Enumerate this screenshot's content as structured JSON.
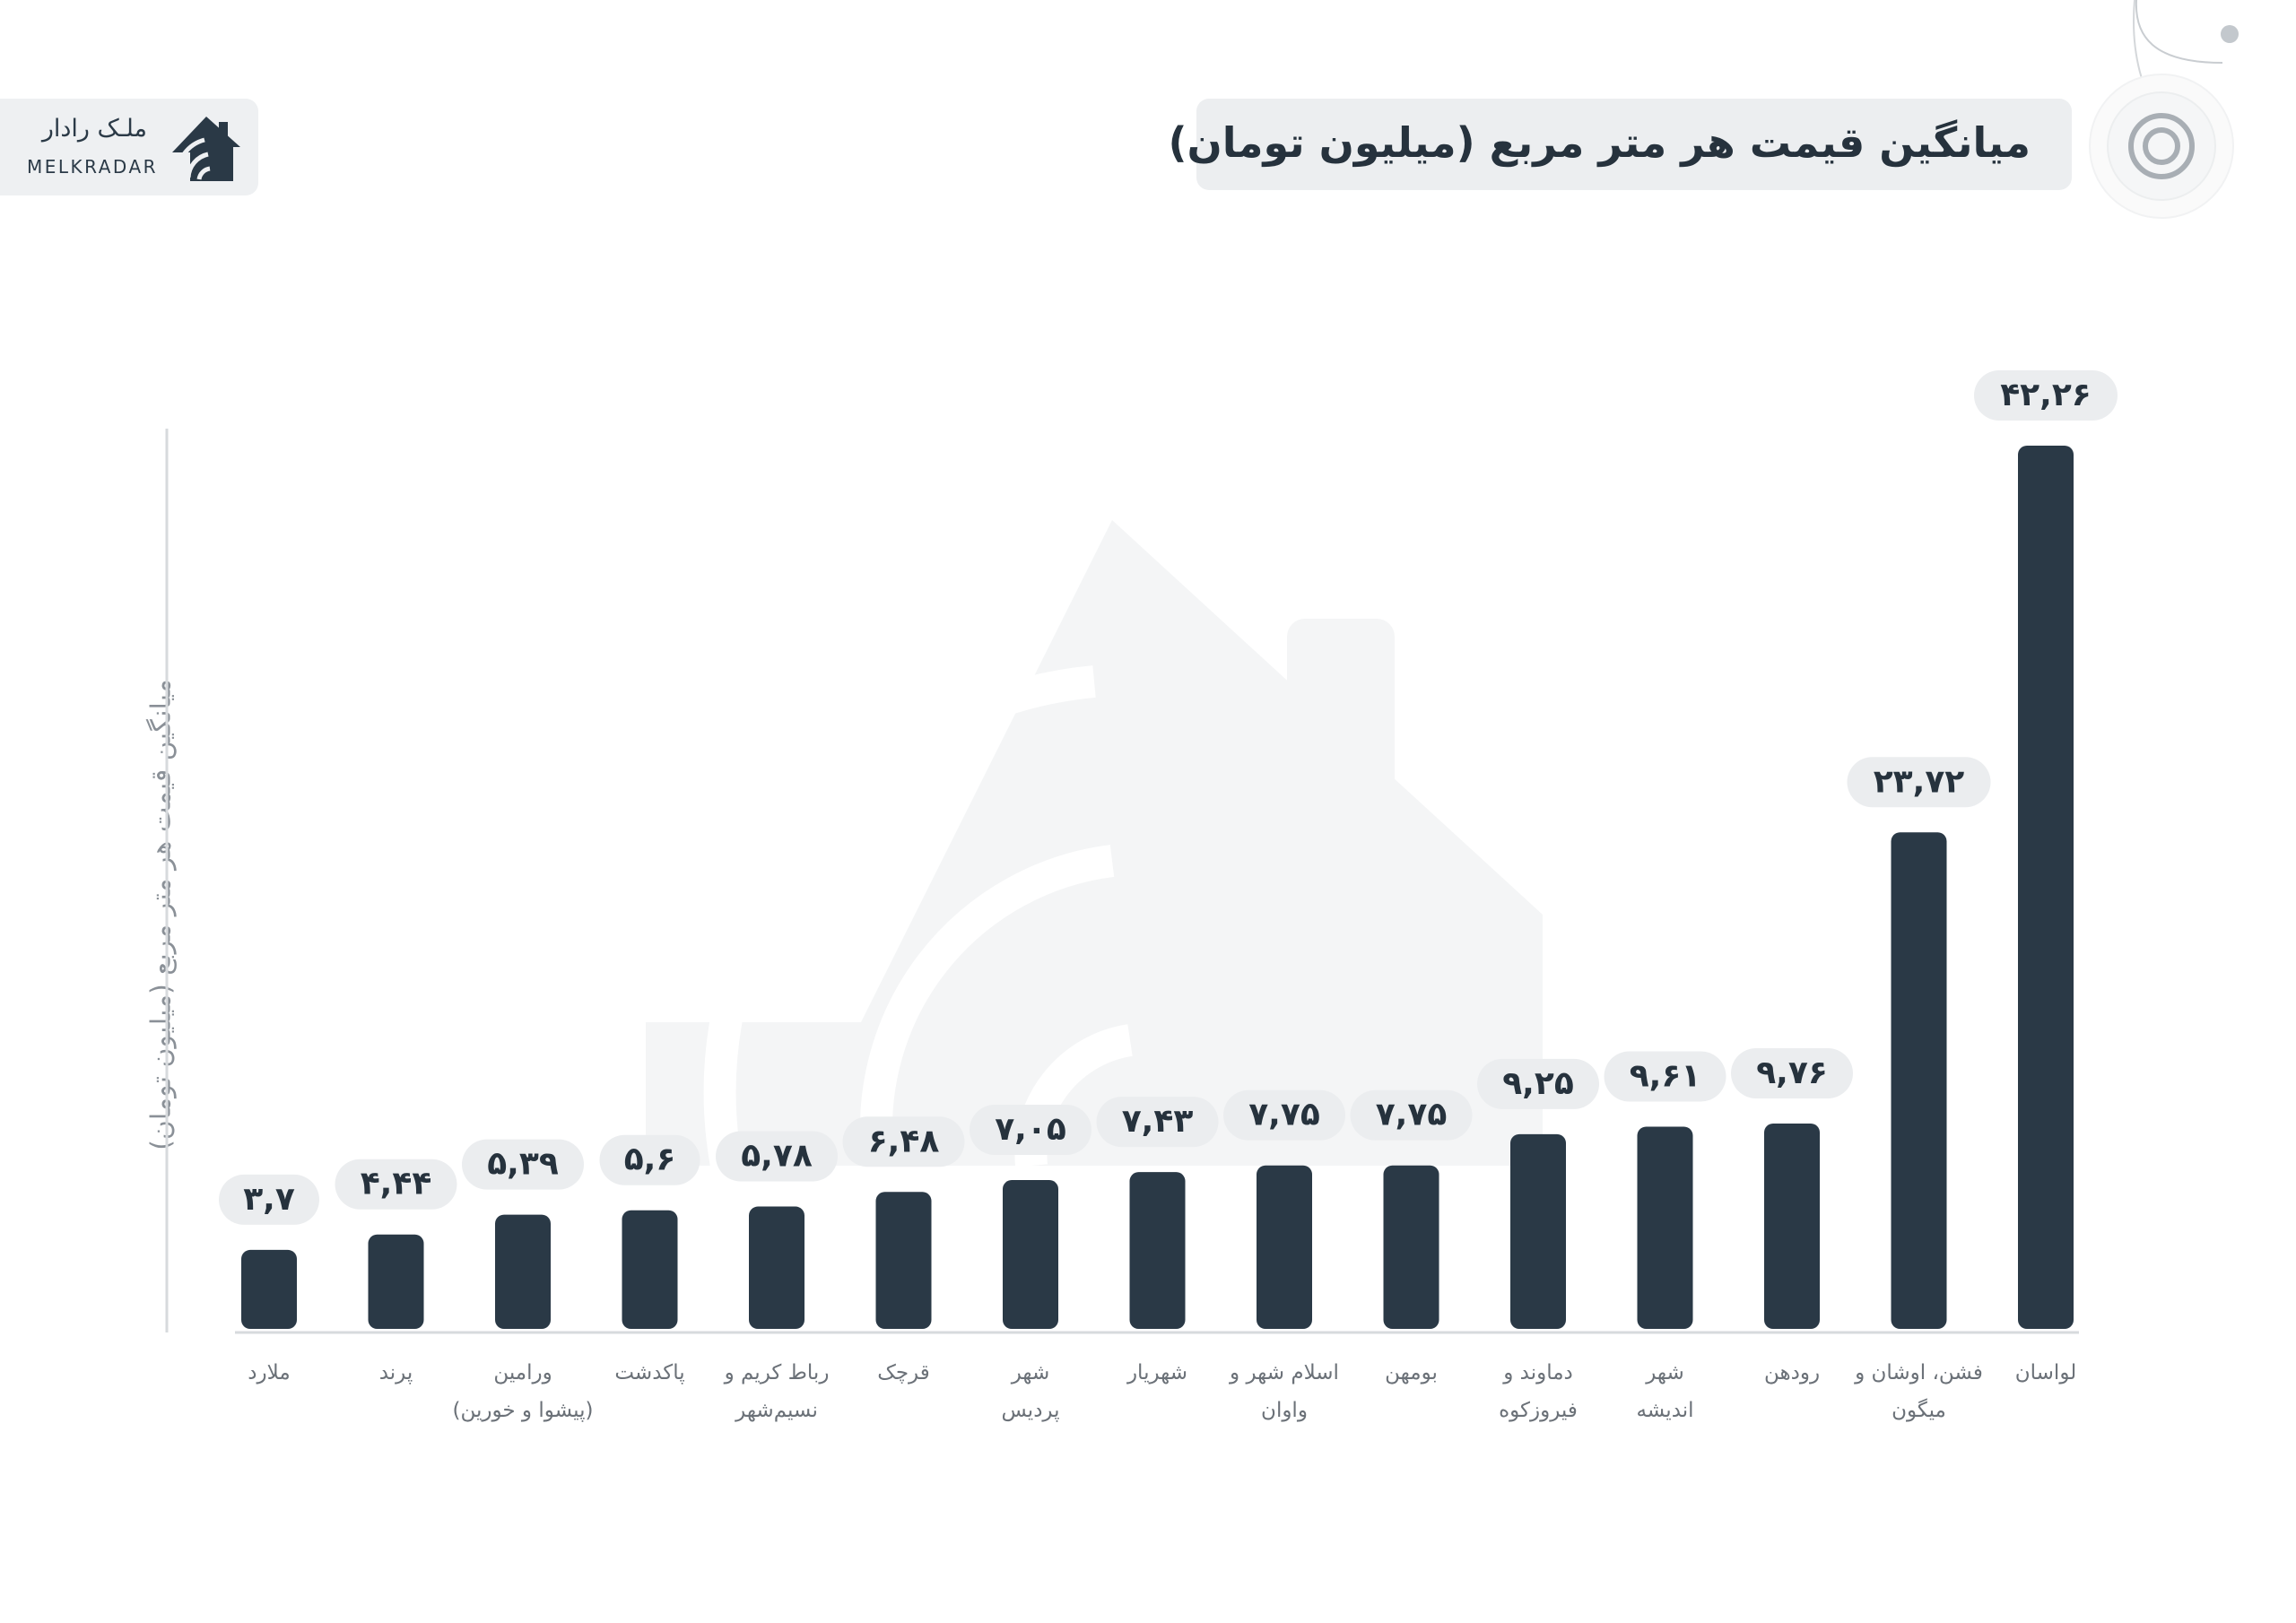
{
  "brand": {
    "name_fa": "ملـک رادار",
    "name_en": "MELKRADAR"
  },
  "colors": {
    "bar": "#2a3946",
    "label_pill": "#ebedef",
    "title_box": "#eceef0",
    "axis": "#d7dadd",
    "watermark": "#f4f5f6"
  },
  "chart_data": {
    "type": "bar",
    "title": "میانگین قیمت هر متر مربع (میلیون تومان)",
    "ylabel": "میانگین قیمت هر متر مربع (میلیون تومان)",
    "xlabel": "",
    "ylim": [
      0,
      42.26
    ],
    "grid": false,
    "categories": [
      [
        "ملارد"
      ],
      [
        "پرند"
      ],
      [
        "ورامین",
        "(پیشوا و خورین)"
      ],
      [
        "پاکدشت"
      ],
      [
        "رباط کریم و",
        "نسیم‌شهر"
      ],
      [
        "قرچک"
      ],
      [
        "شهر",
        "پردیس"
      ],
      [
        "شهریار"
      ],
      [
        "اسلام شهر و",
        "واوان"
      ],
      [
        "بومهن"
      ],
      [
        "دماوند و",
        "فیروزکوه"
      ],
      [
        "شهر",
        "اندیشه"
      ],
      [
        "رودهن"
      ],
      [
        "فشن، اوشان و",
        "میگون"
      ],
      [
        "لواسان"
      ]
    ],
    "values": [
      3.7,
      4.44,
      5.39,
      5.6,
      5.78,
      6.48,
      7.05,
      7.43,
      7.75,
      7.75,
      9.25,
      9.61,
      9.76,
      23.72,
      42.26
    ],
    "value_labels": [
      "۳,۷",
      "۴,۴۴",
      "۵,۳۹",
      "۵,۶",
      "۵,۷۸",
      "۶,۴۸",
      "۷,۰۵",
      "۷,۴۳",
      "۷,۷۵",
      "۷,۷۵",
      "۹,۲۵",
      "۹,۶۱",
      "۹,۷۶",
      "۲۳,۷۲",
      "۴۲,۲۶"
    ]
  }
}
